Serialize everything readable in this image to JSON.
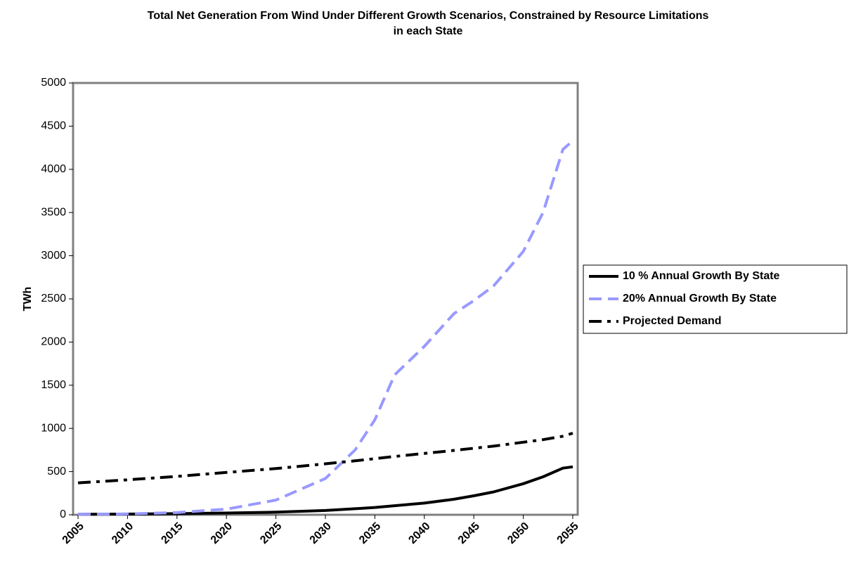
{
  "chart_data": {
    "type": "line",
    "title": "Total Net Generation From Wind Under Different Growth Scenarios, Constrained by Resource Limitations in each State",
    "y_label": "TWh",
    "x": [
      2005,
      2010,
      2015,
      2020,
      2025,
      2030,
      2033,
      2035,
      2037,
      2040,
      2043,
      2045,
      2047,
      2050,
      2052,
      2054,
      2055
    ],
    "series": [
      {
        "name": "10 % Annual Growth By State",
        "color": "#000000",
        "dash": "solid",
        "values": [
          5,
          8,
          13,
          20,
          30,
          50,
          70,
          85,
          105,
          135,
          180,
          220,
          265,
          360,
          440,
          540,
          555
        ]
      },
      {
        "name": "20% Annual Growth By State",
        "color": "#9999ff",
        "dash": "dashed",
        "values": [
          5,
          10,
          25,
          65,
          170,
          420,
          750,
          1100,
          1620,
          1950,
          2330,
          2480,
          2650,
          3050,
          3500,
          4230,
          4330
        ]
      },
      {
        "name": "Projected Demand",
        "color": "#000000",
        "dash": "dashdot",
        "values": [
          370,
          405,
          445,
          490,
          535,
          590,
          625,
          650,
          675,
          710,
          745,
          770,
          795,
          840,
          870,
          910,
          945
        ]
      }
    ],
    "xlim": [
      2004.5,
      2055.5
    ],
    "xticks": [
      2005,
      2010,
      2015,
      2020,
      2025,
      2030,
      2035,
      2040,
      2045,
      2050,
      2055
    ],
    "ylim": [
      0,
      5000
    ],
    "yticks": [
      0,
      500,
      1000,
      1500,
      2000,
      2500,
      3000,
      3500,
      4000,
      4500,
      5000
    ],
    "grid": false,
    "legend": "right"
  }
}
